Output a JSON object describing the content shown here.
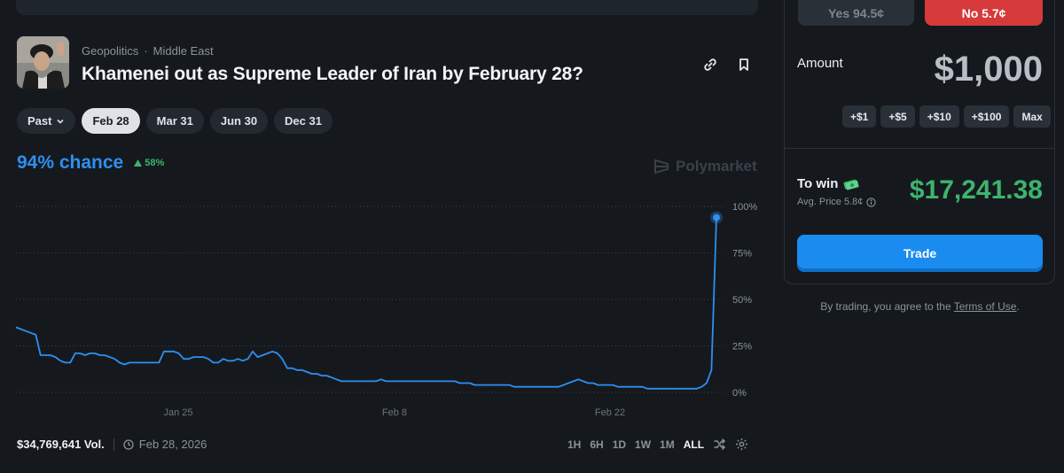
{
  "header": {
    "category": "Geopolitics",
    "subcategory": "Middle East",
    "title": "Khamenei out as Supreme Leader of Iran by February 28?"
  },
  "tabs": [
    {
      "label": "Past"
    },
    {
      "label": "Feb 28"
    },
    {
      "label": "Mar 31"
    },
    {
      "label": "Jun 30"
    },
    {
      "label": "Dec 31"
    }
  ],
  "chance": {
    "label": "94% chance",
    "delta": "58%"
  },
  "brand": "Polymarket",
  "footer": {
    "volume": "$34,769,641 Vol.",
    "date": "Feb 28, 2026",
    "ranges": [
      "1H",
      "6H",
      "1D",
      "1W",
      "1M",
      "ALL"
    ]
  },
  "trade_panel": {
    "yes_label": "Yes 94.5¢",
    "no_label": "No 5.7¢",
    "amount_label": "Amount",
    "amount_value": "$1,000",
    "chips": [
      "+$1",
      "+$5",
      "+$10",
      "+$100",
      "Max"
    ],
    "to_win_label": "To win",
    "avg_price": "Avg. Price 5.8¢",
    "to_win_value": "$17,241.38",
    "trade_button": "Trade",
    "terms_prefix": "By trading, you agree to the ",
    "terms_link": "Terms of Use",
    "terms_suffix": "."
  },
  "colors": {
    "accent": "#2e8ff0",
    "positive": "#3db46d",
    "negative": "#d73a3a",
    "background": "#15191e"
  },
  "chart_data": {
    "type": "line",
    "x_ticks": [
      "Jan 25",
      "Feb 8",
      "Feb 22"
    ],
    "y_ticks": [
      "100%",
      "75%",
      "50%",
      "25%",
      "0%"
    ],
    "ylim": [
      0,
      100
    ],
    "grid": true,
    "series": [
      {
        "values": [
          35,
          34,
          33,
          32,
          31,
          20,
          20,
          20,
          19,
          17,
          16,
          16,
          21,
          21,
          20,
          21,
          21,
          20,
          20,
          19,
          18,
          16,
          15,
          16,
          16,
          16,
          16,
          16,
          16,
          16,
          22,
          22,
          22,
          21,
          18,
          18,
          19,
          19,
          19,
          18,
          16,
          16,
          18,
          17,
          17,
          18,
          17,
          18,
          22,
          19,
          20,
          21,
          22,
          21,
          18,
          13,
          13,
          12,
          12,
          11,
          10,
          10,
          9,
          9,
          8,
          7,
          6,
          6,
          6,
          6,
          6,
          6,
          6,
          6,
          7,
          6,
          6,
          6,
          6,
          6,
          6,
          6,
          6,
          6,
          6,
          6,
          6,
          6,
          6,
          6,
          5,
          5,
          5,
          4,
          4,
          4,
          4,
          4,
          4,
          4,
          4,
          3,
          3,
          3,
          3,
          3,
          3,
          3,
          3,
          3,
          3,
          4,
          5,
          6,
          7,
          6,
          5,
          5,
          4,
          4,
          4,
          4,
          3,
          3,
          3,
          3,
          3,
          3,
          2,
          2,
          2,
          2,
          2,
          2,
          2,
          2,
          2,
          2,
          2,
          3,
          5,
          12,
          94
        ]
      }
    ]
  }
}
